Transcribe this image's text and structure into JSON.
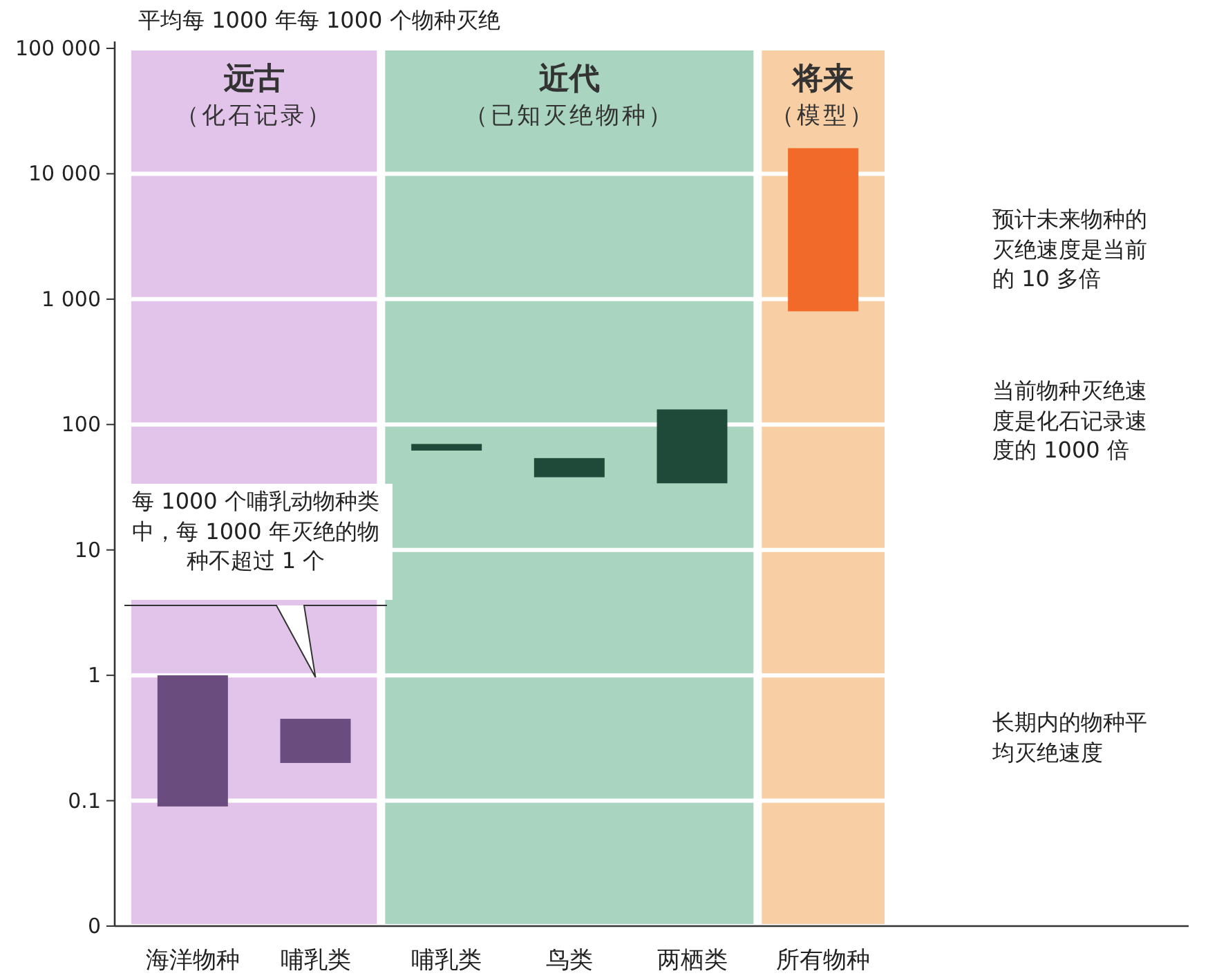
{
  "chart_data": {
    "type": "bar",
    "ylabel": "平均每 1000 年每 1000 个物种灭绝",
    "categories": [
      "海洋物种",
      "哺乳类",
      "哺乳类",
      "鸟类",
      "两栖类",
      "所有物种"
    ],
    "base": [
      0.09,
      0.2,
      62,
      38,
      34,
      800
    ],
    "values": [
      0.91,
      0.25,
      8,
      16,
      98,
      15200
    ],
    "colors": [
      "#6b4c7e",
      "#6b4c7e",
      "#1f4a3a",
      "#1f4a3a",
      "#1f4a3a",
      "#f26a2a"
    ],
    "log": true,
    "grid": "y",
    "ylim": [
      0.01,
      100000
    ],
    "yticks": [
      {
        "value": 0.01,
        "label": "0"
      },
      0.1,
      1,
      10,
      100,
      {
        "value": 1000,
        "label": "1 000"
      },
      {
        "value": 10000,
        "label": "10 000"
      },
      {
        "value": 100000,
        "label": "100 000"
      }
    ],
    "bands": [
      {
        "axis": "x",
        "from": "海洋物种",
        "to": "哺乳类",
        "label": "远古（化石记录）",
        "color": "#e2c4ea"
      },
      {
        "axis": "x",
        "from": "哺乳类",
        "to": "两栖类",
        "label": "近代（已知灭绝物种）",
        "color": "#a9d4c0"
      },
      {
        "axis": "x",
        "from": "所有物种",
        "to": "所有物种",
        "label": "将来（模型）",
        "color": "#f8cfa4"
      }
    ],
    "annotations": [
      "每 1000 个哺乳动物种类中，每 1000 年灭绝的物种不超过 1 个",
      "预计未来物种的灭绝速度是当前的 10 多倍",
      "当前物种灭绝速度是化石记录速度的 1000 倍",
      "长期内的物种平均灭绝速度"
    ]
  }
}
